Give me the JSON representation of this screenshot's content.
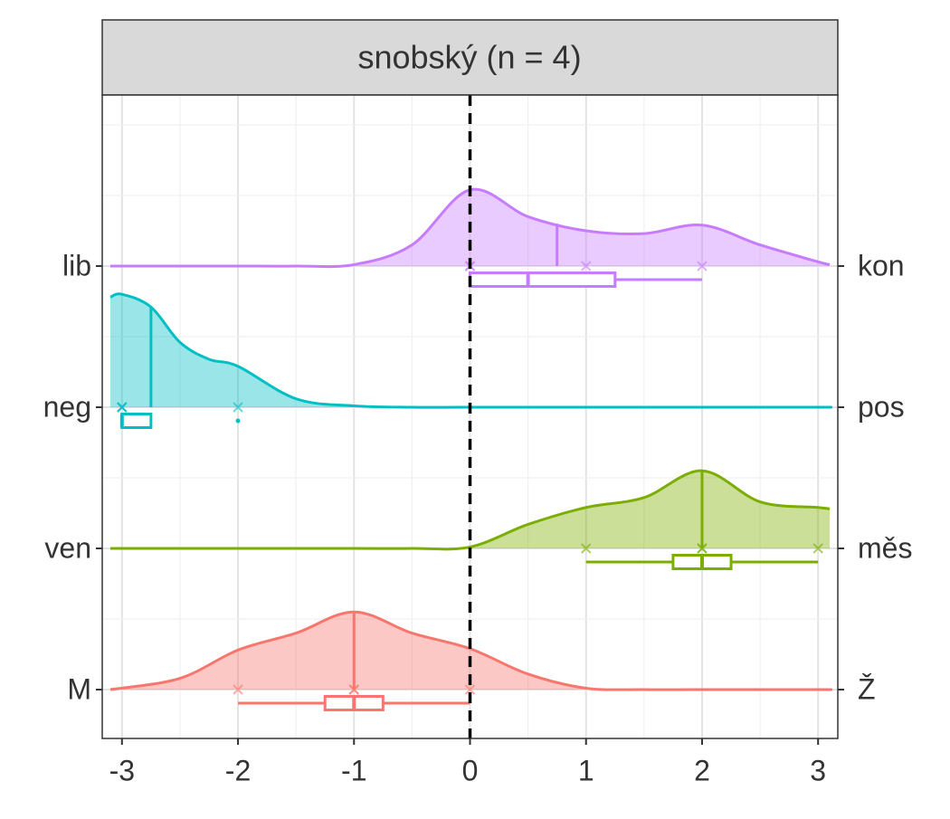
{
  "chart_data": {
    "type": "raincloud",
    "title": "snobský (n = 4)",
    "xlim": [
      -3.17,
      3.17
    ],
    "xticks": [
      -3,
      -2,
      -1,
      0,
      1,
      2,
      3
    ],
    "vline": 0,
    "grid": true,
    "groups": [
      {
        "left": "lib",
        "right": "kon",
        "color": "#c77cff",
        "points": [
          0,
          0,
          1,
          2
        ],
        "mean": 0.75,
        "box": {
          "q1": 0,
          "median": 0.5,
          "q3": 1.25,
          "low": 0,
          "high": 2
        },
        "outliers": [],
        "density": {
          "x": [
            -3.1,
            -2.5,
            -2,
            -1.5,
            -1,
            -0.5,
            0,
            0.5,
            1,
            1.5,
            2,
            2.5,
            3,
            3.1
          ],
          "y": [
            0,
            0,
            0,
            0,
            0.01,
            0.15,
            0.54,
            0.35,
            0.25,
            0.23,
            0.29,
            0.15,
            0.03,
            0.01
          ]
        }
      },
      {
        "left": "neg",
        "right": "pos",
        "color": "#00bfc4",
        "points": [
          -3,
          -3,
          -3,
          -2
        ],
        "mean": -2.75,
        "box": {
          "q1": -3,
          "median": -3,
          "q3": -2.75,
          "low": -3,
          "high": -2.75
        },
        "outliers": [
          -2
        ],
        "density": {
          "x": [
            -3.1,
            -3,
            -2.75,
            -2.5,
            -2.25,
            -2,
            -1.5,
            -1,
            -0.5,
            0,
            1,
            2,
            3,
            3.1
          ],
          "y": [
            0.78,
            0.8,
            0.71,
            0.46,
            0.34,
            0.29,
            0.06,
            0.01,
            0,
            0,
            0,
            0,
            0,
            0
          ]
        }
      },
      {
        "left": "ven",
        "right": "měs",
        "color": "#7cae00",
        "points": [
          1,
          2,
          2,
          3
        ],
        "mean": 2,
        "box": {
          "q1": 1.75,
          "median": 2,
          "q3": 2.25,
          "low": 1,
          "high": 3
        },
        "outliers": [],
        "density": {
          "x": [
            -3.1,
            -2,
            -1,
            -0.5,
            0,
            0.5,
            1,
            1.5,
            2,
            2.5,
            3,
            3.1
          ],
          "y": [
            0,
            0,
            0,
            0,
            0.01,
            0.17,
            0.29,
            0.36,
            0.55,
            0.33,
            0.29,
            0.28
          ]
        }
      },
      {
        "left": "M",
        "right": "Ž",
        "color": "#f8766d",
        "points": [
          -2,
          -1,
          -1,
          0
        ],
        "mean": -1,
        "box": {
          "q1": -1.25,
          "median": -1,
          "q3": -0.75,
          "low": -2,
          "high": 0
        },
        "outliers": [],
        "density": {
          "x": [
            -3.1,
            -2.5,
            -2,
            -1.5,
            -1,
            -0.5,
            0,
            0.5,
            1,
            1.5,
            2,
            3,
            3.1
          ],
          "y": [
            0,
            0.08,
            0.28,
            0.4,
            0.55,
            0.4,
            0.29,
            0.11,
            0.01,
            0,
            0,
            0,
            0
          ]
        }
      }
    ]
  }
}
